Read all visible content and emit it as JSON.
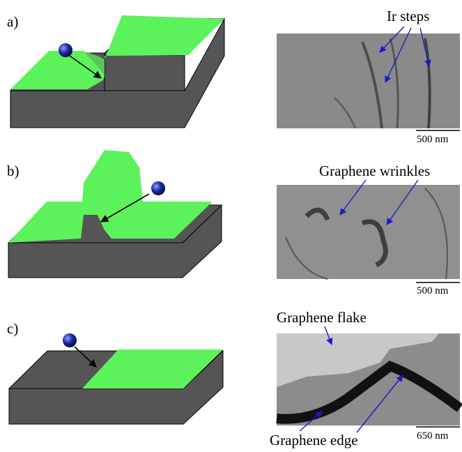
{
  "panels": [
    {
      "label": "a)",
      "annotation": "Ir steps",
      "scale_bar": "500 nm"
    },
    {
      "label": "b)",
      "annotation": "Graphene wrinkles",
      "scale_bar": "500 nm"
    },
    {
      "label": "c)",
      "annotation": "Graphene flake",
      "annotation_2": "Graphene edge",
      "scale_bar": "650 nm"
    }
  ]
}
